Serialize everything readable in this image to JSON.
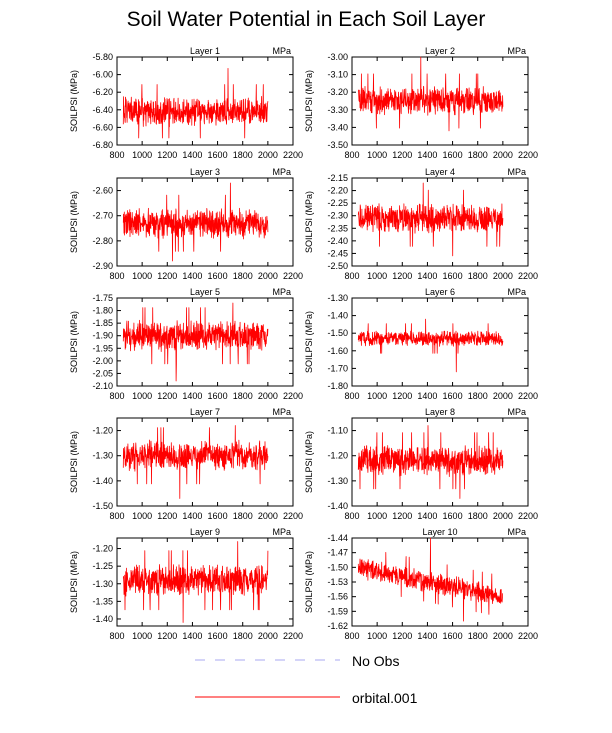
{
  "title": "Soil Water Potential in Each Soil Layer",
  "legend": [
    {
      "label": "No Obs",
      "color": "#a9a9f0",
      "dashed": true
    },
    {
      "label": "orbital.001",
      "color": "#ff0000",
      "dashed": false
    }
  ],
  "chart_data": [
    {
      "type": "line",
      "title": "Layer 1",
      "unit": "MPa",
      "ylabel": "SOILPSI  (MPa)",
      "xlim": [
        800,
        2200
      ],
      "ylim": [
        -6.8,
        -5.8
      ],
      "xticks": [
        "800",
        "1000",
        "1200",
        "1400",
        "1600",
        "1800",
        "2000",
        "2200"
      ],
      "yticks": [
        "-5.80",
        "-6.00",
        "-6.20",
        "-6.40",
        "-6.60",
        "-6.80"
      ],
      "series": [
        {
          "x_range": [
            850,
            2000
          ],
          "baseline": -6.42,
          "spread": 0.11,
          "y_min": -6.72,
          "y_max": -5.93,
          "color": "#ff0000"
        }
      ]
    },
    {
      "type": "line",
      "title": "Layer 2",
      "unit": "MPa",
      "ylabel": "SOILPSI  (MPa)",
      "xlim": [
        800,
        2200
      ],
      "ylim": [
        -3.5,
        -3.0
      ],
      "xticks": [
        "800",
        "1000",
        "1200",
        "1400",
        "1600",
        "1800",
        "2000",
        "2200"
      ],
      "yticks": [
        "-3.00",
        "-3.10",
        "-3.20",
        "-3.30",
        "-3.40",
        "-3.50"
      ],
      "series": [
        {
          "x_range": [
            850,
            2000
          ],
          "baseline": -3.25,
          "spread": 0.055,
          "y_min": -3.42,
          "y_max": -3.0,
          "color": "#ff0000"
        }
      ]
    },
    {
      "type": "line",
      "title": "Layer 3",
      "unit": "MPa",
      "ylabel": "SOILPSI  (MPa)",
      "xlim": [
        800,
        2200
      ],
      "ylim": [
        -2.9,
        -2.55
      ],
      "xticks": [
        "800",
        "1000",
        "1200",
        "1400",
        "1600",
        "1800",
        "2000",
        "2200"
      ],
      "yticks": [
        "-2.60",
        "-2.70",
        "-2.80",
        "-2.90"
      ],
      "series": [
        {
          "x_range": [
            850,
            2000
          ],
          "baseline": -2.73,
          "spread": 0.04,
          "y_min": -2.88,
          "y_max": -2.57,
          "color": "#ff0000"
        }
      ]
    },
    {
      "type": "line",
      "title": "Layer 4",
      "unit": "MPa",
      "ylabel": "SOILPSI  (MPa)",
      "xlim": [
        800,
        2200
      ],
      "ylim": [
        -2.5,
        -2.15
      ],
      "xticks": [
        "800",
        "1000",
        "1200",
        "1400",
        "1600",
        "1800",
        "2000",
        "2200"
      ],
      "yticks": [
        "-2.15",
        "-2.20",
        "-2.25",
        "-2.30",
        "-2.35",
        "-2.40",
        "-2.45",
        "-2.50"
      ],
      "series": [
        {
          "x_range": [
            850,
            2000
          ],
          "baseline": -2.31,
          "spread": 0.04,
          "y_min": -2.46,
          "y_max": -2.17,
          "color": "#ff0000"
        }
      ]
    },
    {
      "type": "line",
      "title": "Layer 5",
      "unit": "MPa",
      "ylabel": "SOILPSI  (MPa)",
      "xlim": [
        800,
        2200
      ],
      "ylim": [
        -2.1,
        -1.75
      ],
      "xticks": [
        "800",
        "1000",
        "1200",
        "1400",
        "1600",
        "1800",
        "2000",
        "2200"
      ],
      "yticks": [
        "-1.75",
        "-1.80",
        "-1.85",
        "-1.90",
        "-1.95",
        "-2.00",
        "-2.05",
        "-2.10"
      ],
      "series": [
        {
          "x_range": [
            850,
            2000
          ],
          "baseline": -1.9,
          "spread": 0.04,
          "y_min": -2.08,
          "y_max": -1.77,
          "color": "#ff0000"
        }
      ]
    },
    {
      "type": "line",
      "title": "Layer 6",
      "unit": "MPa",
      "ylabel": "SOILPSI  (MPa)",
      "xlim": [
        800,
        2200
      ],
      "ylim": [
        -1.8,
        -1.3
      ],
      "xticks": [
        "800",
        "1000",
        "1200",
        "1400",
        "1600",
        "1800",
        "2000",
        "2200"
      ],
      "yticks": [
        "-1.30",
        "-1.40",
        "-1.50",
        "-1.60",
        "-1.70",
        "-1.80"
      ],
      "series": [
        {
          "x_range": [
            850,
            2000
          ],
          "baseline": -1.53,
          "spread": 0.03,
          "y_min": -1.72,
          "y_max": -1.42,
          "color": "#ff0000"
        }
      ]
    },
    {
      "type": "line",
      "title": "Layer 7",
      "unit": "MPa",
      "ylabel": "SOILPSI  (MPa)",
      "xlim": [
        800,
        2200
      ],
      "ylim": [
        -1.5,
        -1.15
      ],
      "xticks": [
        "800",
        "1000",
        "1200",
        "1400",
        "1600",
        "1800",
        "2000",
        "2200"
      ],
      "yticks": [
        "-1.20",
        "-1.30",
        "-1.40",
        "-1.50"
      ],
      "series": [
        {
          "x_range": [
            850,
            2000
          ],
          "baseline": -1.3,
          "spread": 0.04,
          "y_min": -1.47,
          "y_max": -1.18,
          "color": "#ff0000"
        }
      ]
    },
    {
      "type": "line",
      "title": "Layer 8",
      "unit": "MPa",
      "ylabel": "SOILPSI  (MPa)",
      "xlim": [
        800,
        2200
      ],
      "ylim": [
        -1.4,
        -1.05
      ],
      "xticks": [
        "800",
        "1000",
        "1200",
        "1400",
        "1600",
        "1800",
        "2000",
        "2200"
      ],
      "yticks": [
        "-1.10",
        "-1.20",
        "-1.30",
        "-1.40"
      ],
      "series": [
        {
          "x_range": [
            850,
            2000
          ],
          "baseline": -1.22,
          "spread": 0.04,
          "y_min": -1.37,
          "y_max": -1.08,
          "color": "#ff0000"
        }
      ]
    },
    {
      "type": "line",
      "title": "Layer 9",
      "unit": "MPa",
      "ylabel": "SOILPSI  (MPa)",
      "xlim": [
        800,
        2200
      ],
      "ylim": [
        -1.42,
        -1.17
      ],
      "xticks": [
        "800",
        "1000",
        "1200",
        "1400",
        "1600",
        "1800",
        "2000",
        "2200"
      ],
      "yticks": [
        "-1.20",
        "-1.25",
        "-1.30",
        "-1.35",
        "-1.40"
      ],
      "series": [
        {
          "x_range": [
            850,
            2000
          ],
          "baseline": -1.29,
          "spread": 0.03,
          "y_min": -1.41,
          "y_max": -1.18,
          "color": "#ff0000"
        }
      ]
    },
    {
      "type": "line",
      "title": "Layer 10",
      "unit": "MPa",
      "ylabel": "SOILPSI  (MPa)",
      "xlim": [
        800,
        2200
      ],
      "ylim": [
        -1.62,
        -1.44
      ],
      "xticks": [
        "800",
        "1000",
        "1200",
        "1400",
        "1600",
        "1800",
        "2000",
        "2200"
      ],
      "yticks": [
        "-1.44",
        "-1.47",
        "-1.50",
        "-1.53",
        "-1.56",
        "-1.59",
        "-1.62"
      ],
      "series": [
        {
          "x_range": [
            850,
            2000
          ],
          "baseline_start": -1.5,
          "baseline_end": -1.56,
          "spread": 0.015,
          "y_min": -1.61,
          "y_max": -1.44,
          "color": "#ff0000"
        }
      ]
    }
  ]
}
